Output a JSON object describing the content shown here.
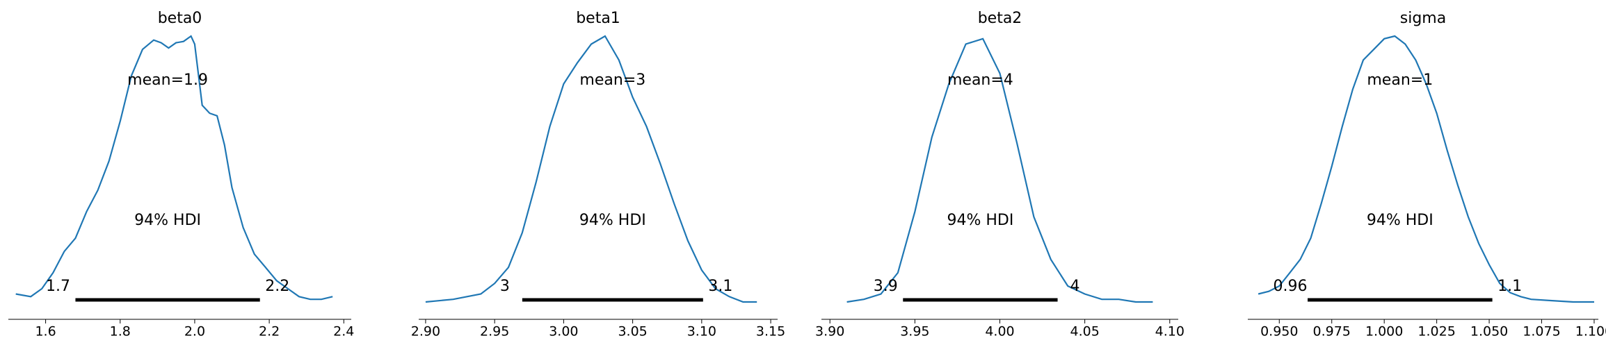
{
  "chart_data": [
    {
      "type": "line",
      "title": "beta0",
      "mean_label": "mean=1.9",
      "hdi_label": "94% HDI",
      "hdi_low_label": "1.7",
      "hdi_high_label": "2.2",
      "hdi": [
        1.68,
        2.175
      ],
      "xlim": [
        1.5,
        2.42
      ],
      "xticks": [
        1.6,
        1.8,
        2.0,
        2.2,
        2.4
      ],
      "xtick_labels": [
        "1.6",
        "1.8",
        "2.0",
        "2.2",
        "2.4"
      ],
      "x": [
        1.52,
        1.56,
        1.59,
        1.62,
        1.65,
        1.68,
        1.71,
        1.74,
        1.77,
        1.8,
        1.83,
        1.86,
        1.89,
        1.91,
        1.93,
        1.95,
        1.97,
        1.99,
        2.0,
        2.02,
        2.04,
        2.06,
        2.08,
        2.1,
        2.13,
        2.16,
        2.19,
        2.22,
        2.25,
        2.28,
        2.31,
        2.34,
        2.37
      ],
      "y": [
        0.03,
        0.02,
        0.05,
        0.11,
        0.19,
        0.24,
        0.34,
        0.42,
        0.53,
        0.68,
        0.85,
        0.95,
        0.985,
        0.975,
        0.955,
        0.975,
        0.98,
        1.0,
        0.97,
        0.74,
        0.71,
        0.7,
        0.59,
        0.43,
        0.28,
        0.18,
        0.13,
        0.08,
        0.05,
        0.02,
        0.01,
        0.01,
        0.02
      ]
    },
    {
      "type": "line",
      "title": "beta1",
      "mean_label": "mean=3",
      "hdi_label": "94% HDI",
      "hdi_low_label": "3",
      "hdi_high_label": "3.1",
      "hdi": [
        2.97,
        3.101
      ],
      "xlim": [
        2.895,
        3.155
      ],
      "xticks": [
        2.9,
        2.95,
        3.0,
        3.05,
        3.1,
        3.15
      ],
      "xtick_labels": [
        "2.90",
        "2.95",
        "3.00",
        "3.05",
        "3.10",
        "3.15"
      ],
      "x": [
        2.9,
        2.92,
        2.94,
        2.95,
        2.96,
        2.97,
        2.98,
        2.99,
        3.0,
        3.01,
        3.02,
        3.03,
        3.04,
        3.05,
        3.06,
        3.07,
        3.08,
        3.09,
        3.1,
        3.11,
        3.12,
        3.13,
        3.14
      ],
      "y": [
        0.0,
        0.01,
        0.03,
        0.07,
        0.13,
        0.26,
        0.45,
        0.66,
        0.82,
        0.9,
        0.97,
        1.0,
        0.91,
        0.77,
        0.66,
        0.52,
        0.37,
        0.23,
        0.12,
        0.05,
        0.02,
        0.0,
        0.0
      ]
    },
    {
      "type": "line",
      "title": "beta2",
      "mean_label": "mean=4",
      "hdi_label": "94% HDI",
      "hdi_low_label": "3.9",
      "hdi_high_label": "4",
      "hdi": [
        3.943,
        4.034
      ],
      "xlim": [
        3.895,
        4.105
      ],
      "xticks": [
        3.9,
        3.95,
        4.0,
        4.05,
        4.1
      ],
      "xtick_labels": [
        "3.90",
        "3.95",
        "4.00",
        "4.05",
        "4.10"
      ],
      "x": [
        3.91,
        3.92,
        3.93,
        3.94,
        3.95,
        3.96,
        3.97,
        3.98,
        3.99,
        4.0,
        4.01,
        4.02,
        4.03,
        4.04,
        4.05,
        4.06,
        4.07,
        4.08,
        4.09
      ],
      "y": [
        0.0,
        0.01,
        0.03,
        0.11,
        0.34,
        0.62,
        0.82,
        0.97,
        0.99,
        0.86,
        0.6,
        0.32,
        0.16,
        0.06,
        0.03,
        0.01,
        0.01,
        0.0,
        0.0
      ]
    },
    {
      "type": "line",
      "title": "sigma",
      "mean_label": "mean=1",
      "hdi_label": "94% HDI",
      "hdi_low_label": "0.96",
      "hdi_high_label": "1.1",
      "hdi": [
        0.9635,
        1.0515
      ],
      "xlim": [
        0.935,
        1.102
      ],
      "xticks": [
        0.95,
        0.975,
        1.0,
        1.025,
        1.05,
        1.075,
        1.1
      ],
      "xtick_labels": [
        "0.950",
        "0.975",
        "1.000",
        "1.025",
        "1.050",
        "1.075",
        "1.100"
      ],
      "x": [
        0.94,
        0.945,
        0.95,
        0.955,
        0.96,
        0.965,
        0.97,
        0.975,
        0.98,
        0.985,
        0.99,
        0.995,
        1.0,
        1.005,
        1.01,
        1.015,
        1.02,
        1.025,
        1.03,
        1.035,
        1.04,
        1.045,
        1.05,
        1.055,
        1.06,
        1.065,
        1.07,
        1.08,
        1.09,
        1.1
      ],
      "y": [
        0.03,
        0.04,
        0.06,
        0.11,
        0.16,
        0.24,
        0.37,
        0.51,
        0.66,
        0.8,
        0.91,
        0.95,
        0.99,
        1.0,
        0.97,
        0.91,
        0.82,
        0.71,
        0.57,
        0.44,
        0.32,
        0.22,
        0.14,
        0.07,
        0.035,
        0.02,
        0.01,
        0.005,
        0.0,
        0.0
      ]
    }
  ]
}
